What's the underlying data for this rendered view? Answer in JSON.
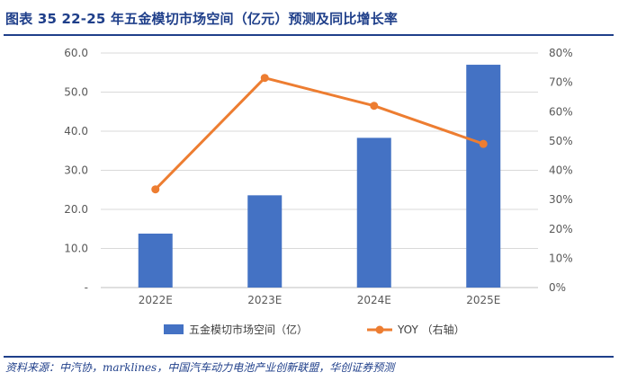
{
  "header": {
    "title": "图表 35   22-25 年五金模切市场空间（亿元）预测及同比增长率"
  },
  "footer": {
    "source": "资料来源：中汽协，marklines，中国汽车动力电池产业创新联盟，华创证券预测"
  },
  "chart_data": {
    "type": "bar",
    "categories": [
      "2022E",
      "2023E",
      "2024E",
      "2025E"
    ],
    "series": [
      {
        "name": "五金模切市场空间（亿）",
        "type": "bar",
        "axis": "left",
        "color": "#4472c4",
        "values": [
          13.8,
          23.6,
          38.3,
          57.0
        ]
      },
      {
        "name": "YOY （右轴）",
        "type": "line",
        "axis": "right",
        "color": "#ed7d31",
        "values": [
          0.335,
          0.715,
          0.62,
          0.49
        ]
      }
    ],
    "y_left": {
      "ylim": [
        0,
        60
      ],
      "ticks": [
        0,
        10,
        20,
        30,
        40,
        50,
        60
      ],
      "tick_labels": [
        "-",
        "10.0",
        "20.0",
        "30.0",
        "40.0",
        "50.0",
        "60.0"
      ]
    },
    "y_right": {
      "ylim": [
        0,
        0.8
      ],
      "ticks": [
        0,
        0.1,
        0.2,
        0.3,
        0.4,
        0.5,
        0.6,
        0.7,
        0.8
      ],
      "tick_labels": [
        "0%",
        "10%",
        "20%",
        "30%",
        "40%",
        "50%",
        "60%",
        "70%",
        "80%"
      ]
    },
    "grid": true,
    "legend_position": "bottom"
  }
}
